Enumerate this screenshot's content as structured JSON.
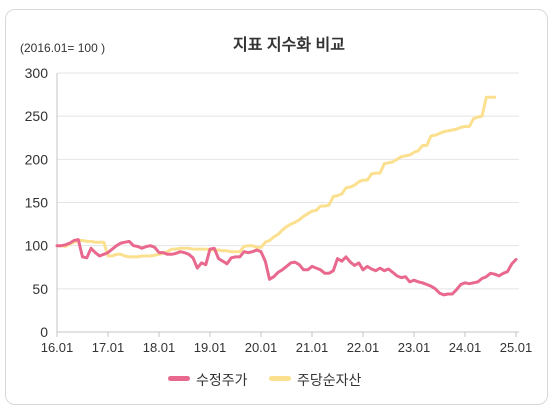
{
  "chart_data": {
    "type": "line",
    "title": "지표 지수화 비교",
    "subtitle": "(2016.01= 100 )",
    "ylim": [
      0,
      300
    ],
    "xlim": [
      "2016-01",
      "2025-01"
    ],
    "y_ticks": [
      0,
      50,
      100,
      150,
      200,
      250,
      300
    ],
    "x_ticks": [
      "16.01",
      "17.01",
      "18.01",
      "19.01",
      "20.01",
      "21.01",
      "22.01",
      "23.01",
      "24.01",
      "25.01"
    ],
    "grid": {
      "horizontal": true,
      "vertical": false
    },
    "legend": {
      "position": "bottom"
    },
    "x": [
      "2016-01",
      "2016-02",
      "2016-03",
      "2016-04",
      "2016-05",
      "2016-06",
      "2016-07",
      "2016-08",
      "2016-09",
      "2016-10",
      "2016-11",
      "2016-12",
      "2017-01",
      "2017-02",
      "2017-03",
      "2017-04",
      "2017-05",
      "2017-06",
      "2017-07",
      "2017-08",
      "2017-09",
      "2017-10",
      "2017-11",
      "2017-12",
      "2018-01",
      "2018-02",
      "2018-03",
      "2018-04",
      "2018-05",
      "2018-06",
      "2018-07",
      "2018-08",
      "2018-09",
      "2018-10",
      "2018-11",
      "2018-12",
      "2019-01",
      "2019-02",
      "2019-03",
      "2019-04",
      "2019-05",
      "2019-06",
      "2019-07",
      "2019-08",
      "2019-09",
      "2019-10",
      "2019-11",
      "2019-12",
      "2020-01",
      "2020-02",
      "2020-03",
      "2020-04",
      "2020-05",
      "2020-06",
      "2020-07",
      "2020-08",
      "2020-09",
      "2020-10",
      "2020-11",
      "2020-12",
      "2021-01",
      "2021-02",
      "2021-03",
      "2021-04",
      "2021-05",
      "2021-06",
      "2021-07",
      "2021-08",
      "2021-09",
      "2021-10",
      "2021-11",
      "2021-12",
      "2022-01",
      "2022-02",
      "2022-03",
      "2022-04",
      "2022-05",
      "2022-06",
      "2022-07",
      "2022-08",
      "2022-09",
      "2022-10",
      "2022-11",
      "2022-12",
      "2023-01",
      "2023-02",
      "2023-03",
      "2023-04",
      "2023-05",
      "2023-06",
      "2023-07",
      "2023-08",
      "2023-09",
      "2023-10",
      "2023-11",
      "2023-12",
      "2024-01",
      "2024-02",
      "2024-03",
      "2024-04",
      "2024-05",
      "2024-06",
      "2024-07",
      "2024-08",
      "2024-09",
      "2024-10",
      "2024-11",
      "2024-12",
      "2025-01"
    ],
    "series": [
      {
        "name": "수정주가",
        "color": "#e8698d",
        "values": [
          100,
          100,
          101,
          103,
          106,
          107,
          87,
          86,
          97,
          92,
          88,
          90,
          92,
          96,
          100,
          103,
          104,
          105,
          100,
          99,
          97,
          99,
          100,
          98,
          92,
          92,
          90,
          90,
          91,
          93,
          92,
          90,
          86,
          74,
          80,
          78,
          96,
          97,
          85,
          82,
          79,
          86,
          87,
          87,
          93,
          92,
          93,
          95,
          93,
          82,
          61,
          64,
          69,
          72,
          76,
          80,
          81,
          78,
          72,
          72,
          76,
          74,
          72,
          68,
          68,
          71,
          85,
          82,
          87,
          81,
          77,
          80,
          72,
          76,
          73,
          71,
          74,
          71,
          73,
          69,
          65,
          63,
          64,
          58,
          60,
          58,
          57,
          55,
          53,
          50,
          45,
          43,
          44,
          44,
          49,
          55,
          57,
          56,
          57,
          58,
          62,
          64,
          68,
          67,
          65,
          68,
          70,
          79,
          84
        ]
      },
      {
        "name": "주당순자산",
        "color": "#fbe08f",
        "values": [
          100,
          100,
          99,
          102,
          104,
          106,
          106,
          105,
          105,
          104,
          104,
          104,
          88,
          88,
          90,
          90,
          88,
          87,
          87,
          87,
          88,
          88,
          88,
          89,
          90,
          91,
          93,
          96,
          96,
          97,
          97,
          97,
          96,
          96,
          96,
          96,
          95,
          95,
          95,
          94,
          94,
          93,
          93,
          93,
          99,
          100,
          100,
          98,
          98,
          104,
          106,
          110,
          113,
          118,
          122,
          125,
          127,
          130,
          134,
          137,
          140,
          141,
          146,
          146,
          147,
          157,
          158,
          160,
          167,
          168,
          170,
          174,
          176,
          176,
          183,
          184,
          184,
          195,
          196,
          197,
          200,
          203,
          204,
          205,
          208,
          210,
          216,
          216,
          227,
          228,
          230,
          232,
          233,
          234,
          235,
          237,
          238,
          238,
          247,
          249,
          250,
          272,
          272,
          272,
          null,
          null,
          null,
          null,
          null
        ]
      }
    ]
  }
}
